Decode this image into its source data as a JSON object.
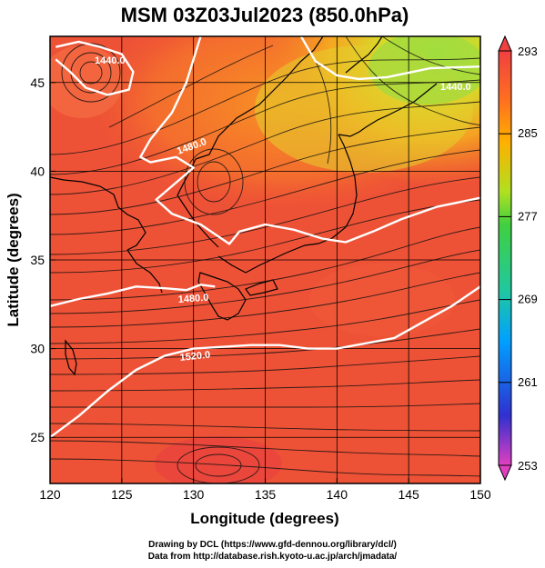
{
  "title": "MSM 03Z03Jul2023 (850.0hPa)",
  "xlabel": "Longitude (degrees)",
  "ylabel": "Latitude  (degrees)",
  "x_ticks": [
    "120",
    "125",
    "130",
    "135",
    "140",
    "145",
    "150"
  ],
  "y_ticks": [
    "25",
    "30",
    "35",
    "40",
    "45"
  ],
  "colorbar": {
    "ticks": [
      "293",
      "285",
      "277",
      "269",
      "261",
      "253"
    ],
    "min": 253,
    "max": 293,
    "colors": [
      "#e040c0",
      "#3030d0",
      "#00a0ff",
      "#20c8a0",
      "#40d040",
      "#b0e020",
      "#ffb000",
      "#ff7020",
      "#f04040"
    ]
  },
  "contour_labels": [
    "1440.0",
    "1480.0",
    "1520.0",
    "1440.0"
  ],
  "credits": {
    "line1": "Drawing by DCL (https://www.gfd-dennou.org/library/dcl/)",
    "line2": "Data from http://database.rish.kyoto-u.ac.jp/arch/jmadata/"
  },
  "chart_data": {
    "type": "map",
    "x_range": [
      120,
      150
    ],
    "y_range": [
      22.4,
      47.6
    ],
    "variable_range": [
      253,
      293
    ],
    "contours": [
      {
        "label": "1440.0",
        "points": [
          [
            120.4,
            47.0
          ],
          [
            122,
            47.3
          ],
          [
            123.5,
            47.0
          ],
          [
            125,
            46.6
          ],
          [
            125.8,
            45.6
          ],
          [
            125.5,
            44.6
          ],
          [
            124,
            44.3
          ],
          [
            122.5,
            44.7
          ],
          [
            121.4,
            45.6
          ],
          [
            120.4,
            46.3
          ]
        ]
      },
      {
        "label": "1440.0",
        "points": [
          [
            137.5,
            47.6
          ],
          [
            138.5,
            46.2
          ],
          [
            140.0,
            45.4
          ],
          [
            141.5,
            45.2
          ],
          [
            143.5,
            45.3
          ],
          [
            146.5,
            45.8
          ],
          [
            150,
            45.9
          ]
        ]
      },
      {
        "label": "1480.0",
        "points": [
          [
            130.5,
            47.6
          ],
          [
            129.5,
            45.0
          ],
          [
            128.5,
            43.3
          ],
          [
            127.0,
            41.8
          ],
          [
            126.3,
            40.8
          ],
          [
            127.0,
            40.5
          ],
          [
            128.8,
            40.8
          ],
          [
            130.0,
            40.2
          ],
          [
            127.4,
            38.4
          ],
          [
            128.5,
            37.6
          ],
          [
            130.5,
            37.0
          ],
          [
            132.5,
            35.9
          ],
          [
            133.2,
            36.6
          ],
          [
            135.0,
            37.0
          ],
          [
            137.0,
            36.7
          ],
          [
            139.0,
            36.2
          ],
          [
            140.6,
            36.0
          ],
          [
            142.5,
            36.6
          ],
          [
            144.5,
            37.3
          ],
          [
            147.0,
            38.0
          ],
          [
            150,
            38.5
          ]
        ]
      },
      {
        "label": "1480.0",
        "points": [
          [
            120,
            32.4
          ],
          [
            122.0,
            32.8
          ],
          [
            124.0,
            33.1
          ],
          [
            126.0,
            33.5
          ],
          [
            128.0,
            33.4
          ],
          [
            129.5,
            33.3
          ],
          [
            130.5,
            33.6
          ],
          [
            131.5,
            33.5
          ]
        ]
      },
      {
        "label": "1520.0",
        "points": [
          [
            120,
            25.0
          ],
          [
            122.0,
            26.2
          ],
          [
            124.0,
            27.6
          ],
          [
            126.0,
            28.8
          ],
          [
            128.0,
            29.6
          ],
          [
            130.0,
            30.0
          ],
          [
            132.0,
            30.1
          ],
          [
            134.0,
            30.2
          ],
          [
            136.0,
            30.2
          ],
          [
            138.0,
            30.0
          ],
          [
            140.0,
            30.0
          ],
          [
            142.0,
            30.3
          ],
          [
            144.0,
            30.6
          ],
          [
            146.0,
            31.5
          ],
          [
            148.0,
            32.4
          ],
          [
            150,
            33.5
          ]
        ]
      }
    ]
  }
}
